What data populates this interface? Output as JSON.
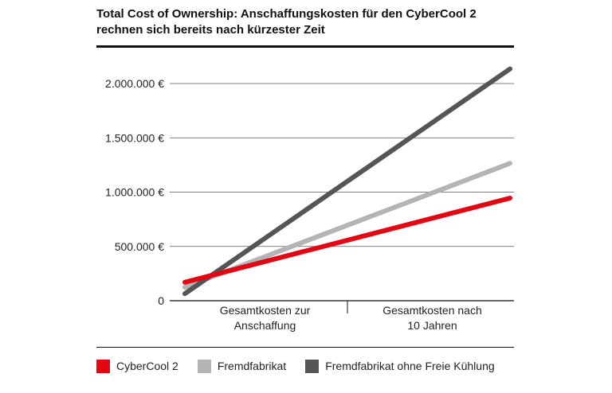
{
  "chart_data": {
    "type": "line",
    "title": "Total Cost of Ownership: Anschaffungskosten für den CyberCool 2 rechnen sich bereits nach kürzester Zeit",
    "categories": [
      "Gesamtkosten zur Anschaffung",
      "Gesamtkosten nach 10 Jahren"
    ],
    "category_lines": [
      [
        "Gesamtkosten zur",
        "Anschaffung"
      ],
      [
        "Gesamtkosten nach",
        "10 Jahren"
      ]
    ],
    "yticks": [
      {
        "value": 0,
        "label": "0"
      },
      {
        "value": 500000,
        "label": "500.000 €"
      },
      {
        "value": 1000000,
        "label": "1.000.000 €"
      },
      {
        "value": 1500000,
        "label": "1.500.000 €"
      },
      {
        "value": 2000000,
        "label": "2.000.000 €"
      }
    ],
    "ylim": [
      0,
      2000000
    ],
    "grid": true,
    "legend_position": "bottom",
    "series": [
      {
        "name": "CyberCool 2",
        "color": "#e30613",
        "start": 170000,
        "end": 945000
      },
      {
        "name": "Fremdfabrikat",
        "color": "#b4b4b4",
        "start": 125000,
        "end": 1265000
      },
      {
        "name": "Fremdfabrikat ohne Freie Kühlung",
        "color": "#555555",
        "start": 65000,
        "end": 2135000
      }
    ]
  }
}
